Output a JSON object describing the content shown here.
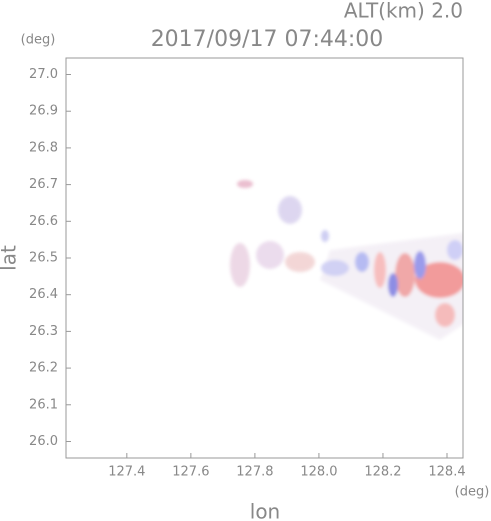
{
  "chart_data": {
    "type": "radar-field",
    "title": "2017/09/17 07:44:00",
    "subtitle": "ALT(km) 2.0",
    "x_label": "lon",
    "y_label": "lat",
    "x_unit": "(deg)",
    "y_unit": "(deg)",
    "xlim": [
      127.21,
      128.45
    ],
    "xticks": [
      127.4,
      127.6,
      127.8,
      {
        "value": 128,
        "label": "128.0"
      },
      128.2,
      128.4
    ],
    "ylim": [
      25.955,
      27.045
    ],
    "yticks": [
      {
        "value": 26,
        "label": "26.0"
      },
      26.1,
      26.2,
      26.3,
      26.4,
      26.5,
      26.6,
      26.7,
      26.8,
      26.9,
      {
        "value": 27,
        "label": "27.0"
      }
    ]
  }
}
